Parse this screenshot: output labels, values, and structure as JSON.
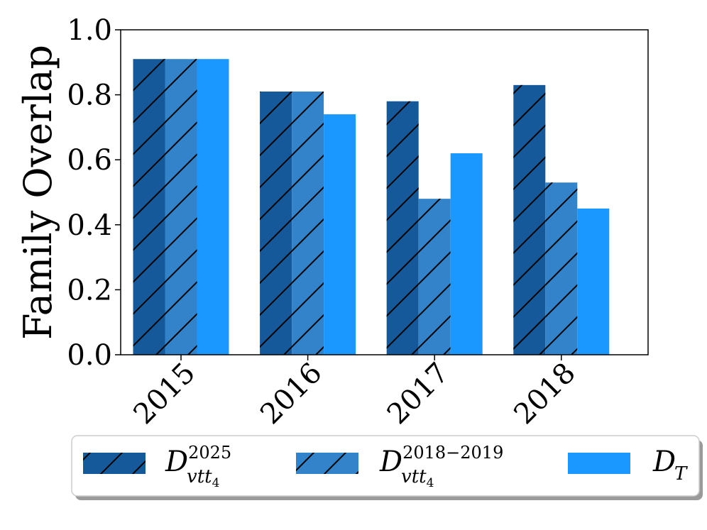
{
  "chart_data": {
    "type": "bar",
    "ylabel": "Family Overlap",
    "xlabel": "",
    "title": "",
    "categories": [
      "2015",
      "2016",
      "2017",
      "2018"
    ],
    "ylim": [
      0,
      1.0
    ],
    "yticks": [
      "0.0",
      "0.2",
      "0.4",
      "0.6",
      "0.8",
      "1.0"
    ],
    "grid": false,
    "legend_position": "bottom",
    "series": [
      {
        "name": "D_vtt4^2025",
        "legend": {
          "base": "D",
          "sub": "vtt",
          "subsub": "4",
          "sup": "2025"
        },
        "values": [
          0.91,
          0.81,
          0.78,
          0.83
        ],
        "color": "#15599a",
        "hatch": true
      },
      {
        "name": "D_vtt4^2018-2019",
        "legend": {
          "base": "D",
          "sub": "vtt",
          "subsub": "4",
          "sup": "2018−2019"
        },
        "values": [
          0.91,
          0.81,
          0.48,
          0.53
        ],
        "color": "#3283c9",
        "hatch": true
      },
      {
        "name": "D_T",
        "legend": {
          "base": "D",
          "sub": "T",
          "subsub": "",
          "sup": ""
        },
        "values": [
          0.91,
          0.74,
          0.62,
          0.45
        ],
        "color": "#1a98ff",
        "hatch": false
      }
    ]
  }
}
